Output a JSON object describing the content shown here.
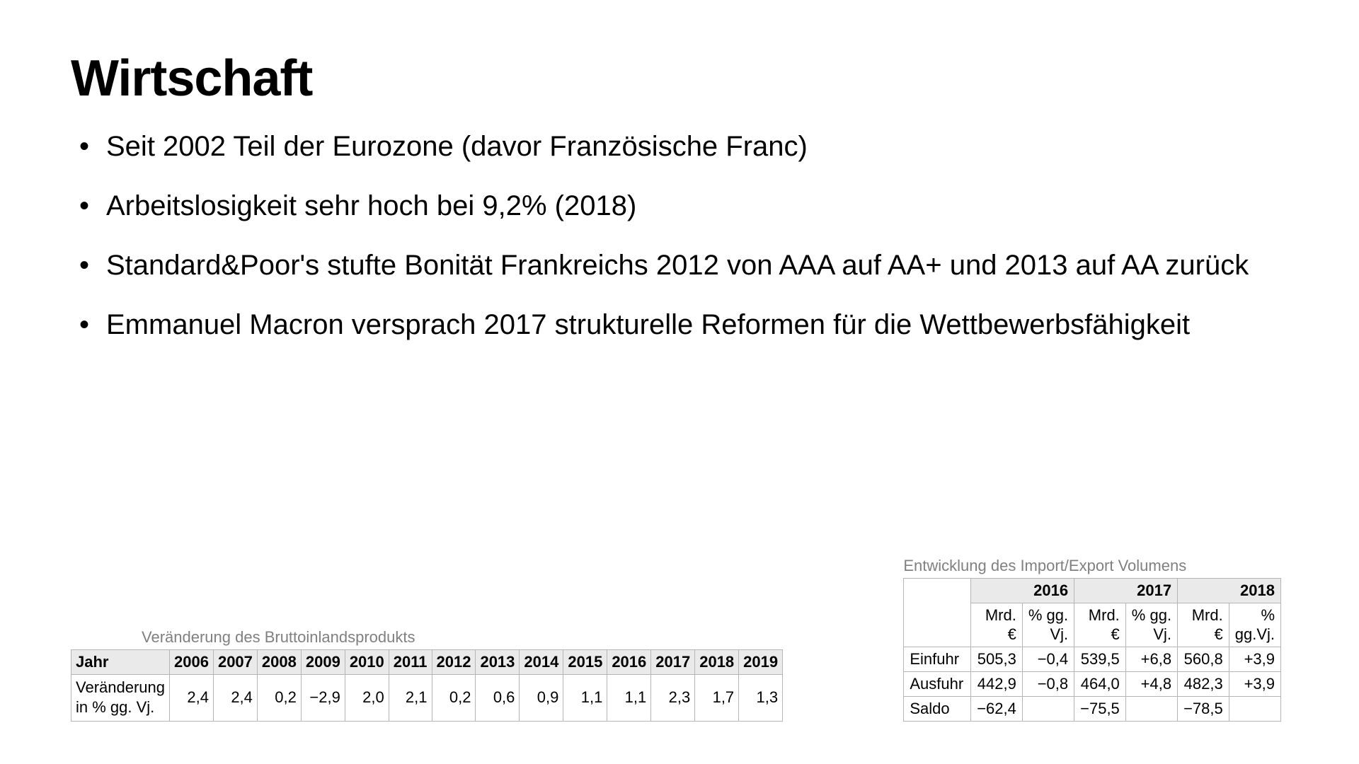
{
  "title": "Wirtschaft",
  "bullets": [
    "Seit 2002 Teil der Eurozone (davor Französische Franc)",
    "Arbeitslosigkeit sehr hoch bei 9,2% (2018)",
    "Standard&Poor's stufte Bonität Frankreichs 2012 von AAA auf AA+ und 2013 auf AA zurück",
    "Emmanuel Macron versprach 2017 strukturelle Reformen für die Wettbewerbsfähigkeit"
  ],
  "gdp_table": {
    "caption": "Veränderung des Bruttoinlandsprodukts",
    "header_label": "Jahr",
    "row_label_line1": "Veränderung",
    "row_label_line2": "in % gg. Vj.",
    "years": [
      "2006",
      "2007",
      "2008",
      "2009",
      "2010",
      "2011",
      "2012",
      "2013",
      "2014",
      "2015",
      "2016",
      "2017",
      "2018",
      "2019"
    ],
    "values": [
      "2,4",
      "2,4",
      "0,2",
      "−2,9",
      "2,0",
      "2,1",
      "0,2",
      "0,6",
      "0,9",
      "1,1",
      "1,1",
      "2,3",
      "1,7",
      "1,3"
    ],
    "header_bg": "#eaeaea",
    "border_color": "#b5b5b5",
    "caption_color": "#808080",
    "font_size_pt": 16
  },
  "ie_table": {
    "caption": "Entwicklung des  Import/Export Volumens",
    "years": [
      "2016",
      "2017",
      "2018"
    ],
    "sub1_line1": "Mrd.",
    "sub1_line2": "€",
    "sub2_line1": "% gg.",
    "sub2_line2": "Vj.",
    "sub2_alt_line1": "%",
    "sub2_alt_line2": "gg.Vj.",
    "rows": [
      {
        "label": "Einfuhr",
        "cells": [
          "505,3",
          "−0,4",
          "539,5",
          "+6,8",
          "560,8",
          "+3,9"
        ]
      },
      {
        "label": "Ausfuhr",
        "cells": [
          "442,9",
          "−0,8",
          "464,0",
          "+4,8",
          "482,3",
          "+3,9"
        ]
      },
      {
        "label": "Saldo",
        "cells": [
          "−62,4",
          "",
          "−75,5",
          "",
          "−78,5",
          ""
        ]
      }
    ],
    "header_bg": "#eaeaea",
    "border_color": "#b5b5b5",
    "caption_color": "#808080",
    "font_size_pt": 16
  },
  "colors": {
    "background": "#ffffff",
    "text": "#000000"
  }
}
